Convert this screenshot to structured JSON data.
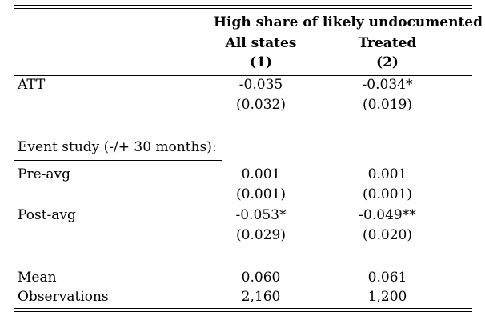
{
  "table": {
    "header": {
      "group_label": "High share of likely undocumented",
      "columns": [
        {
          "label": "All states",
          "number": "(1)"
        },
        {
          "label": "Treated",
          "number": "(2)"
        }
      ]
    },
    "att": {
      "label": "ATT",
      "estimates": [
        "-0.035",
        "-0.034*"
      ],
      "std_errors": [
        "(0.032)",
        "(0.019)"
      ]
    },
    "event_study": {
      "label": "Event study (-/+ 30 months):",
      "pre": {
        "label": "Pre-avg",
        "estimates": [
          "0.001",
          "0.001"
        ],
        "std_errors": [
          "(0.001)",
          "(0.001)"
        ]
      },
      "post": {
        "label": "Post-avg",
        "estimates": [
          "-0.053*",
          "-0.049**"
        ],
        "std_errors": [
          "(0.029)",
          "(0.020)"
        ]
      }
    },
    "mean": {
      "label": "Mean",
      "values": [
        "0.060",
        "0.061"
      ]
    },
    "observations": {
      "label": "Observations",
      "values": [
        "2,160",
        "1,200"
      ]
    }
  }
}
